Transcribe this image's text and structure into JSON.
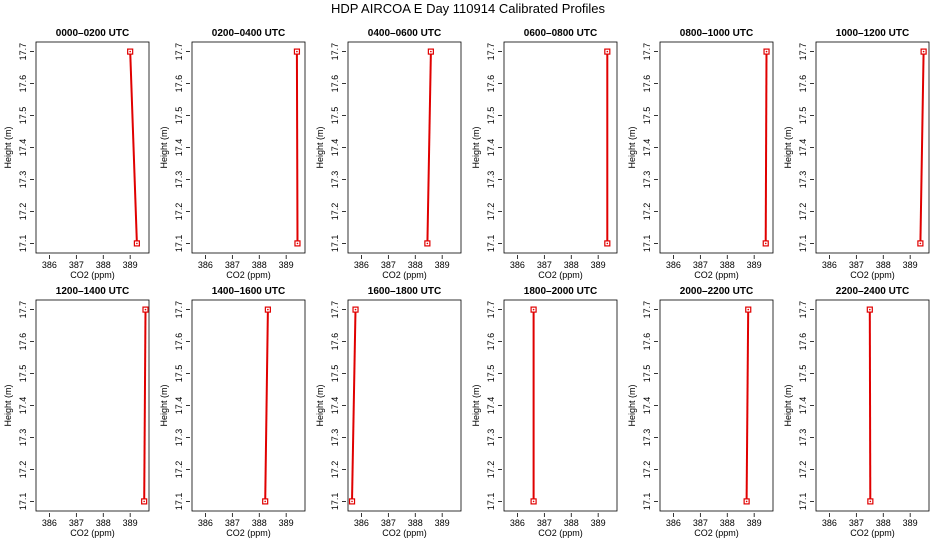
{
  "title": "HDP AIRCOA E  Day 110914  Calibrated Profiles",
  "style": {
    "line_color": "#e00000",
    "axis_color": "#000000",
    "background": "#ffffff"
  },
  "chart_data": {
    "type": "line",
    "layout": {
      "rows": 2,
      "cols": 6
    },
    "xlabel": "CO2 (ppm)",
    "ylabel": "Height (m)",
    "xlim": [
      385.5,
      389.7
    ],
    "ylim": [
      17.07,
      17.73
    ],
    "xticks": [
      386,
      387,
      388,
      389
    ],
    "yticks": [
      17.1,
      17.2,
      17.3,
      17.4,
      17.5,
      17.6,
      17.7
    ],
    "grid": false,
    "legend": "none",
    "panels": [
      {
        "title": "0000–0200 UTC",
        "points": [
          {
            "x": 389.25,
            "y": 17.1
          },
          {
            "x": 389.0,
            "y": 17.7
          }
        ]
      },
      {
        "title": "0200–0400 UTC",
        "points": [
          {
            "x": 389.42,
            "y": 17.1
          },
          {
            "x": 389.4,
            "y": 17.7
          }
        ]
      },
      {
        "title": "0400–0600 UTC",
        "points": [
          {
            "x": 388.45,
            "y": 17.1
          },
          {
            "x": 388.58,
            "y": 17.7
          }
        ]
      },
      {
        "title": "0600–0800 UTC",
        "points": [
          {
            "x": 389.34,
            "y": 17.1
          },
          {
            "x": 389.34,
            "y": 17.7
          }
        ]
      },
      {
        "title": "0800–1000 UTC",
        "points": [
          {
            "x": 389.43,
            "y": 17.1
          },
          {
            "x": 389.46,
            "y": 17.7
          }
        ]
      },
      {
        "title": "1000–1200 UTC",
        "points": [
          {
            "x": 389.38,
            "y": 17.1
          },
          {
            "x": 389.5,
            "y": 17.7
          }
        ]
      },
      {
        "title": "1200–1400 UTC",
        "points": [
          {
            "x": 389.52,
            "y": 17.1
          },
          {
            "x": 389.57,
            "y": 17.7
          }
        ]
      },
      {
        "title": "1400–1600 UTC",
        "points": [
          {
            "x": 388.22,
            "y": 17.1
          },
          {
            "x": 388.32,
            "y": 17.7
          }
        ]
      },
      {
        "title": "1600–1800 UTC",
        "points": [
          {
            "x": 385.65,
            "y": 17.1
          },
          {
            "x": 385.78,
            "y": 17.7
          }
        ]
      },
      {
        "title": "1800–2000 UTC",
        "points": [
          {
            "x": 386.6,
            "y": 17.1
          },
          {
            "x": 386.6,
            "y": 17.7
          }
        ]
      },
      {
        "title": "2000–2200 UTC",
        "points": [
          {
            "x": 388.72,
            "y": 17.1
          },
          {
            "x": 388.78,
            "y": 17.7
          }
        ]
      },
      {
        "title": "2200–2400 UTC",
        "points": [
          {
            "x": 387.52,
            "y": 17.1
          },
          {
            "x": 387.5,
            "y": 17.7
          }
        ]
      }
    ]
  }
}
